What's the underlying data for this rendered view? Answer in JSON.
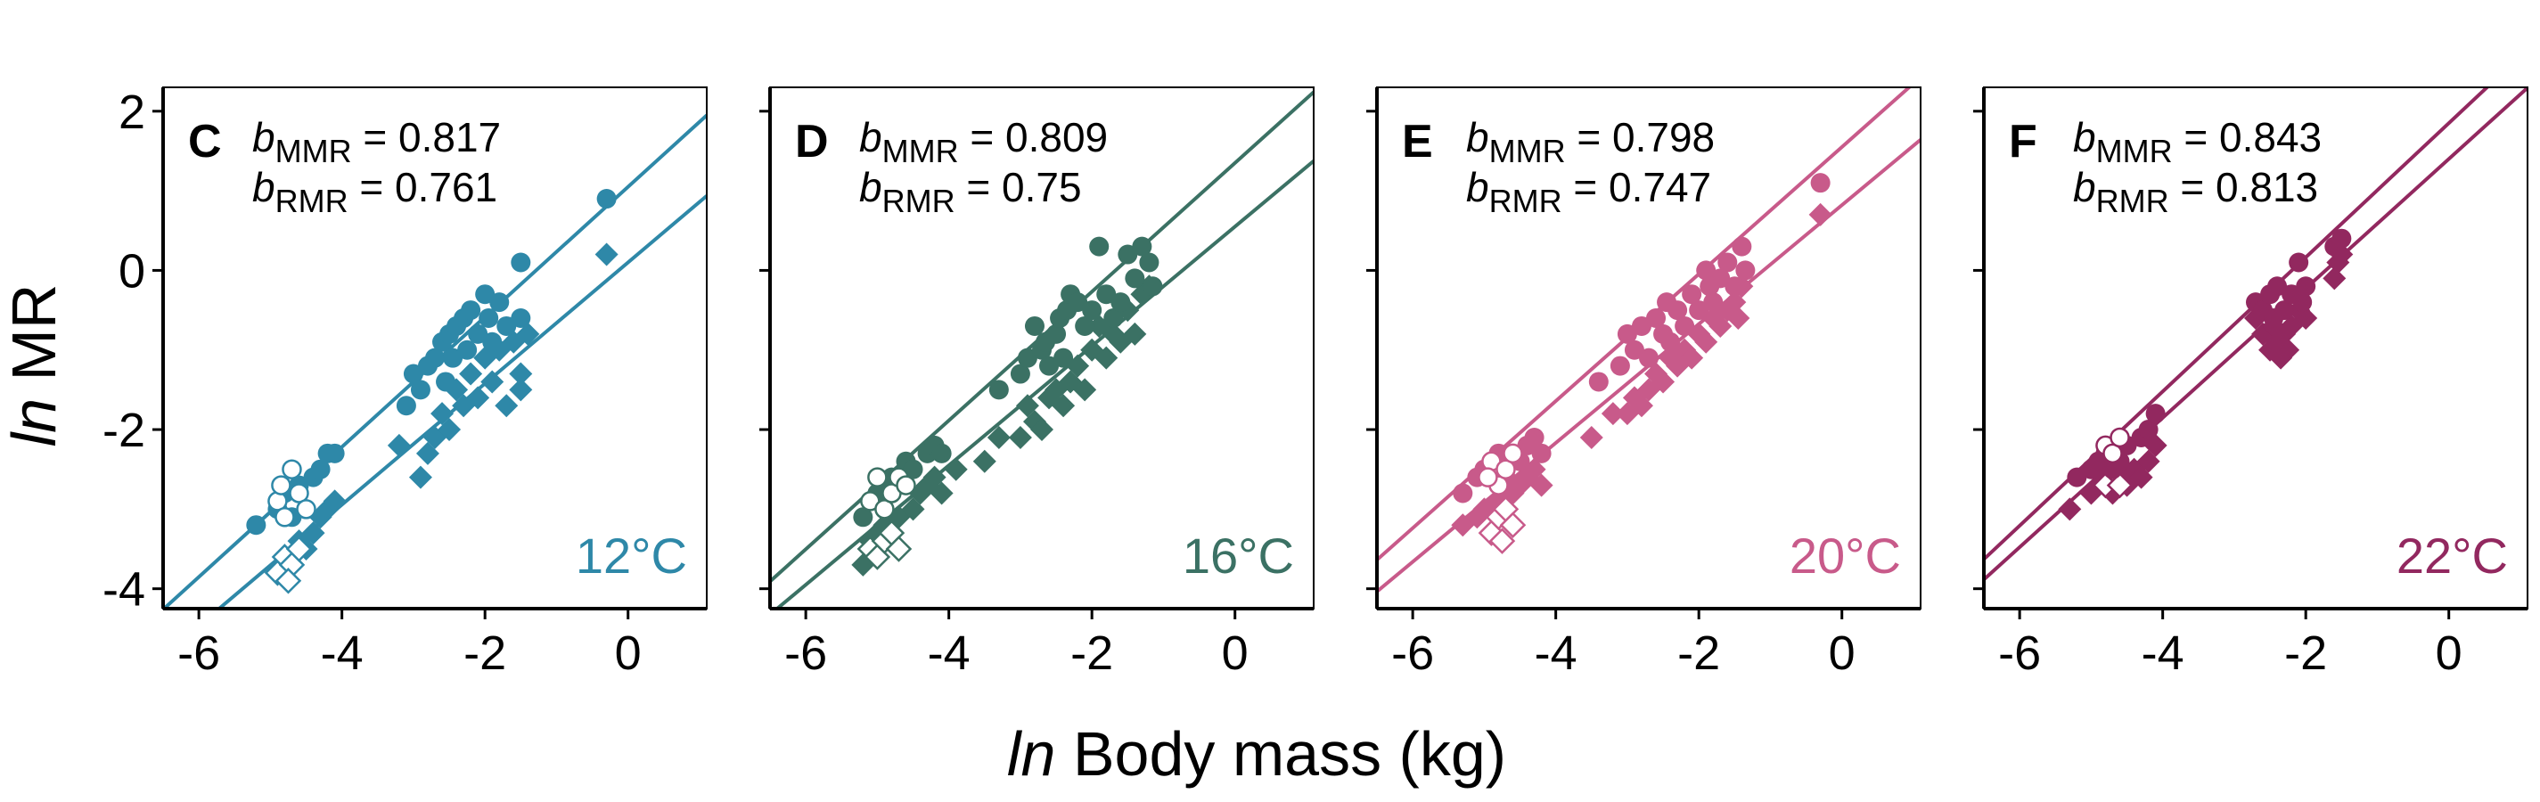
{
  "chart_data": {
    "type": "scatter",
    "xlabel_italic": "ln",
    "xlabel_rest": " Body mass (kg)",
    "ylabel_italic": "ln",
    "ylabel_rest": " MR",
    "xlim": [
      -6.5,
      1.1
    ],
    "ylim": [
      -4.25,
      2.3
    ],
    "x_ticks": [
      -6,
      -4,
      -2,
      0
    ],
    "x_tick_labels": [
      "-6",
      "-4",
      "-2",
      "0"
    ],
    "y_ticks": [
      2,
      0,
      -2,
      -4
    ],
    "y_tick_labels": [
      "2",
      "0",
      "-2",
      "-4"
    ],
    "grid": false,
    "b_symbol": "b",
    "sub_mmr": "MMR",
    "sub_rmr": "RMR",
    "eq_sign": " = ",
    "panels": [
      {
        "letter": "C",
        "temperature": "12°C",
        "color": "#2e88a8",
        "b_mmr": "0.817",
        "b_rmr": "0.761",
        "mmr_line": {
          "slope": 0.817,
          "intercept": 1.05
        },
        "rmr_line": {
          "slope": 0.761,
          "intercept": 0.1
        },
        "mmr_points": [
          [
            -5.2,
            -3.2
          ],
          [
            -4.9,
            -3.0
          ],
          [
            -4.8,
            -2.8
          ],
          [
            -4.7,
            -3.1
          ],
          [
            -4.6,
            -2.7
          ],
          [
            -4.4,
            -2.6
          ],
          [
            -4.3,
            -2.5
          ],
          [
            -4.2,
            -2.3
          ],
          [
            -4.1,
            -2.3
          ],
          [
            -3.1,
            -1.7
          ],
          [
            -3.0,
            -1.3
          ],
          [
            -2.9,
            -1.5
          ],
          [
            -2.8,
            -1.2
          ],
          [
            -2.7,
            -1.1
          ],
          [
            -2.6,
            -0.9
          ],
          [
            -2.55,
            -1.4
          ],
          [
            -2.5,
            -0.8
          ],
          [
            -2.45,
            -1.1
          ],
          [
            -2.4,
            -0.7
          ],
          [
            -2.3,
            -0.6
          ],
          [
            -2.25,
            -1.0
          ],
          [
            -2.2,
            -0.5
          ],
          [
            -2.1,
            -0.8
          ],
          [
            -2.0,
            -0.3
          ],
          [
            -1.95,
            -0.6
          ],
          [
            -1.9,
            -0.9
          ],
          [
            -1.8,
            -0.4
          ],
          [
            -1.7,
            -0.7
          ],
          [
            -1.5,
            0.1
          ],
          [
            -1.5,
            -0.6
          ],
          [
            -0.3,
            0.9
          ]
        ],
        "rmr_points": [
          [
            -4.7,
            -3.6
          ],
          [
            -4.6,
            -3.4
          ],
          [
            -4.5,
            -3.5
          ],
          [
            -4.4,
            -3.3
          ],
          [
            -4.3,
            -3.1
          ],
          [
            -4.2,
            -3.0
          ],
          [
            -4.1,
            -2.9
          ],
          [
            -3.2,
            -2.2
          ],
          [
            -2.9,
            -2.6
          ],
          [
            -2.8,
            -2.3
          ],
          [
            -2.7,
            -2.1
          ],
          [
            -2.6,
            -1.8
          ],
          [
            -2.5,
            -2.0
          ],
          [
            -2.4,
            -1.5
          ],
          [
            -2.3,
            -1.7
          ],
          [
            -2.2,
            -1.3
          ],
          [
            -2.1,
            -1.6
          ],
          [
            -2.0,
            -1.1
          ],
          [
            -1.9,
            -1.4
          ],
          [
            -1.8,
            -1.0
          ],
          [
            -1.7,
            -1.7
          ],
          [
            -1.6,
            -0.9
          ],
          [
            -1.5,
            -1.3
          ],
          [
            -1.4,
            -0.8
          ],
          [
            -1.5,
            -1.5
          ],
          [
            -0.3,
            0.2
          ]
        ],
        "mmr_open": [
          [
            -4.9,
            -2.9
          ],
          [
            -4.8,
            -3.1
          ],
          [
            -4.7,
            -2.5
          ],
          [
            -4.6,
            -2.8
          ],
          [
            -4.5,
            -3.0
          ],
          [
            -4.85,
            -2.7
          ]
        ],
        "rmr_open": [
          [
            -4.9,
            -3.8
          ],
          [
            -4.8,
            -3.6
          ],
          [
            -4.7,
            -3.7
          ],
          [
            -4.6,
            -3.5
          ],
          [
            -4.75,
            -3.9
          ]
        ]
      },
      {
        "letter": "D",
        "temperature": "16°C",
        "color": "#3b7164",
        "b_mmr": "0.809",
        "b_rmr": "0.75",
        "mmr_line": {
          "slope": 0.809,
          "intercept": 1.35
        },
        "rmr_line": {
          "slope": 0.75,
          "intercept": 0.55
        },
        "mmr_points": [
          [
            -5.2,
            -3.1
          ],
          [
            -5.0,
            -2.8
          ],
          [
            -4.9,
            -2.7
          ],
          [
            -4.8,
            -2.6
          ],
          [
            -4.6,
            -2.4
          ],
          [
            -4.5,
            -2.5
          ],
          [
            -4.3,
            -2.3
          ],
          [
            -4.2,
            -2.2
          ],
          [
            -4.1,
            -2.3
          ],
          [
            -3.3,
            -1.5
          ],
          [
            -3.0,
            -1.3
          ],
          [
            -2.9,
            -1.1
          ],
          [
            -2.8,
            -0.7
          ],
          [
            -2.7,
            -1.0
          ],
          [
            -2.65,
            -0.9
          ],
          [
            -2.6,
            -1.2
          ],
          [
            -2.5,
            -0.8
          ],
          [
            -2.45,
            -0.6
          ],
          [
            -2.4,
            -1.1
          ],
          [
            -2.35,
            -0.5
          ],
          [
            -2.3,
            -0.3
          ],
          [
            -2.2,
            -0.4
          ],
          [
            -2.1,
            -0.7
          ],
          [
            -2.0,
            -0.5
          ],
          [
            -1.9,
            0.3
          ],
          [
            -1.8,
            -0.3
          ],
          [
            -1.7,
            -0.6
          ],
          [
            -1.6,
            -0.4
          ],
          [
            -1.5,
            0.2
          ],
          [
            -1.4,
            -0.1
          ],
          [
            -1.3,
            0.3
          ],
          [
            -1.2,
            0.1
          ],
          [
            -1.15,
            -0.2
          ]
        ],
        "rmr_points": [
          [
            -5.2,
            -3.7
          ],
          [
            -5.1,
            -3.4
          ],
          [
            -5.0,
            -3.3
          ],
          [
            -4.9,
            -3.2
          ],
          [
            -4.7,
            -3.1
          ],
          [
            -4.5,
            -3.0
          ],
          [
            -4.4,
            -2.8
          ],
          [
            -4.3,
            -2.7
          ],
          [
            -4.2,
            -2.6
          ],
          [
            -4.1,
            -2.8
          ],
          [
            -3.9,
            -2.5
          ],
          [
            -3.5,
            -2.4
          ],
          [
            -3.3,
            -2.1
          ],
          [
            -3.0,
            -2.1
          ],
          [
            -2.9,
            -1.7
          ],
          [
            -2.8,
            -1.9
          ],
          [
            -2.7,
            -2.0
          ],
          [
            -2.6,
            -1.6
          ],
          [
            -2.5,
            -1.5
          ],
          [
            -2.4,
            -1.7
          ],
          [
            -2.3,
            -1.4
          ],
          [
            -2.2,
            -1.2
          ],
          [
            -2.1,
            -1.5
          ],
          [
            -2.0,
            -1.0
          ],
          [
            -1.9,
            -0.7
          ],
          [
            -1.8,
            -1.1
          ],
          [
            -1.7,
            -0.8
          ],
          [
            -1.6,
            -0.9
          ],
          [
            -1.5,
            -0.5
          ],
          [
            -1.4,
            -0.8
          ],
          [
            -1.3,
            -0.3
          ],
          [
            -1.2,
            -0.2
          ]
        ],
        "mmr_open": [
          [
            -5.1,
            -2.9
          ],
          [
            -5.0,
            -2.6
          ],
          [
            -4.9,
            -3.0
          ],
          [
            -4.8,
            -2.8
          ],
          [
            -4.7,
            -2.6
          ],
          [
            -4.6,
            -2.7
          ]
        ],
        "rmr_open": [
          [
            -5.1,
            -3.5
          ],
          [
            -5.0,
            -3.6
          ],
          [
            -4.9,
            -3.4
          ],
          [
            -4.8,
            -3.3
          ],
          [
            -4.7,
            -3.5
          ]
        ]
      },
      {
        "letter": "E",
        "temperature": "20°C",
        "color": "#c85a8a",
        "b_mmr": "0.798",
        "b_rmr": "0.747",
        "mmr_line": {
          "slope": 0.798,
          "intercept": 1.55
        },
        "rmr_line": {
          "slope": 0.747,
          "intercept": 0.82
        },
        "mmr_points": [
          [
            -5.3,
            -2.8
          ],
          [
            -5.1,
            -2.6
          ],
          [
            -5.0,
            -2.5
          ],
          [
            -4.8,
            -2.3
          ],
          [
            -4.7,
            -2.6
          ],
          [
            -4.5,
            -2.4
          ],
          [
            -4.4,
            -2.2
          ],
          [
            -4.3,
            -2.1
          ],
          [
            -4.2,
            -2.3
          ],
          [
            -3.4,
            -1.4
          ],
          [
            -3.1,
            -1.2
          ],
          [
            -3.0,
            -0.8
          ],
          [
            -2.9,
            -1.0
          ],
          [
            -2.8,
            -0.7
          ],
          [
            -2.7,
            -1.1
          ],
          [
            -2.6,
            -0.6
          ],
          [
            -2.5,
            -0.8
          ],
          [
            -2.45,
            -0.4
          ],
          [
            -2.4,
            -0.9
          ],
          [
            -2.3,
            -0.5
          ],
          [
            -2.2,
            -0.7
          ],
          [
            -2.1,
            -0.3
          ],
          [
            -2.0,
            -0.5
          ],
          [
            -1.9,
            0.0
          ],
          [
            -1.85,
            -0.2
          ],
          [
            -1.8,
            -0.4
          ],
          [
            -1.7,
            -0.1
          ],
          [
            -1.6,
            0.1
          ],
          [
            -1.5,
            -0.2
          ],
          [
            -1.4,
            0.3
          ],
          [
            -1.35,
            0.0
          ],
          [
            -0.3,
            1.1
          ]
        ],
        "rmr_points": [
          [
            -5.3,
            -3.2
          ],
          [
            -5.1,
            -3.1
          ],
          [
            -5.0,
            -3.0
          ],
          [
            -4.8,
            -2.9
          ],
          [
            -4.6,
            -2.8
          ],
          [
            -4.5,
            -2.7
          ],
          [
            -4.4,
            -2.6
          ],
          [
            -4.3,
            -2.5
          ],
          [
            -4.2,
            -2.7
          ],
          [
            -3.5,
            -2.1
          ],
          [
            -3.2,
            -1.8
          ],
          [
            -3.0,
            -1.8
          ],
          [
            -2.9,
            -1.6
          ],
          [
            -2.8,
            -1.7
          ],
          [
            -2.7,
            -1.5
          ],
          [
            -2.6,
            -1.3
          ],
          [
            -2.5,
            -1.4
          ],
          [
            -2.4,
            -1.1
          ],
          [
            -2.3,
            -1.2
          ],
          [
            -2.2,
            -1.0
          ],
          [
            -2.1,
            -1.1
          ],
          [
            -2.0,
            -0.8
          ],
          [
            -1.9,
            -0.9
          ],
          [
            -1.8,
            -0.6
          ],
          [
            -1.7,
            -0.7
          ],
          [
            -1.6,
            -0.5
          ],
          [
            -1.5,
            -0.4
          ],
          [
            -1.45,
            -0.6
          ],
          [
            -1.4,
            -0.2
          ],
          [
            -0.3,
            0.7
          ]
        ],
        "mmr_open": [
          [
            -4.9,
            -2.4
          ],
          [
            -4.8,
            -2.7
          ],
          [
            -4.7,
            -2.5
          ],
          [
            -4.6,
            -2.3
          ],
          [
            -4.95,
            -2.6
          ]
        ],
        "rmr_open": [
          [
            -4.9,
            -3.3
          ],
          [
            -4.8,
            -3.1
          ],
          [
            -4.7,
            -3.0
          ],
          [
            -4.6,
            -3.2
          ],
          [
            -4.75,
            -3.4
          ]
        ]
      },
      {
        "letter": "F",
        "temperature": "22°C",
        "color": "#92285f",
        "b_mmr": "0.843",
        "b_rmr": "0.813",
        "mmr_line": {
          "slope": 0.843,
          "intercept": 1.85
        },
        "rmr_line": {
          "slope": 0.813,
          "intercept": 1.4
        },
        "mmr_points": [
          [
            -5.2,
            -2.6
          ],
          [
            -5.0,
            -2.5
          ],
          [
            -4.9,
            -2.4
          ],
          [
            -4.8,
            -2.3
          ],
          [
            -4.7,
            -2.5
          ],
          [
            -4.6,
            -2.4
          ],
          [
            -4.5,
            -2.2
          ],
          [
            -4.3,
            -2.1
          ],
          [
            -4.2,
            -2.0
          ],
          [
            -4.1,
            -1.8
          ],
          [
            -2.7,
            -0.4
          ],
          [
            -2.6,
            -0.5
          ],
          [
            -2.5,
            -0.3
          ],
          [
            -2.45,
            -0.6
          ],
          [
            -2.4,
            -0.2
          ],
          [
            -2.3,
            -0.5
          ],
          [
            -2.2,
            -0.3
          ],
          [
            -2.1,
            0.1
          ],
          [
            -2.05,
            -0.4
          ],
          [
            -2.0,
            -0.2
          ],
          [
            -1.6,
            0.3
          ],
          [
            -1.5,
            0.4
          ]
        ],
        "rmr_points": [
          [
            -5.3,
            -3.0
          ],
          [
            -5.0,
            -2.8
          ],
          [
            -4.9,
            -2.7
          ],
          [
            -4.8,
            -2.6
          ],
          [
            -4.7,
            -2.8
          ],
          [
            -4.6,
            -2.6
          ],
          [
            -4.5,
            -2.7
          ],
          [
            -4.4,
            -2.5
          ],
          [
            -4.3,
            -2.6
          ],
          [
            -4.2,
            -2.4
          ],
          [
            -4.1,
            -2.2
          ],
          [
            -2.7,
            -0.6
          ],
          [
            -2.6,
            -0.8
          ],
          [
            -2.5,
            -1.0
          ],
          [
            -2.45,
            -0.7
          ],
          [
            -2.4,
            -0.9
          ],
          [
            -2.35,
            -1.1
          ],
          [
            -2.3,
            -0.8
          ],
          [
            -2.25,
            -1.0
          ],
          [
            -2.2,
            -0.7
          ],
          [
            -2.1,
            -0.5
          ],
          [
            -2.0,
            -0.6
          ],
          [
            -1.6,
            -0.1
          ],
          [
            -1.55,
            0.1
          ],
          [
            -1.5,
            0.2
          ]
        ],
        "mmr_open": [
          [
            -4.8,
            -2.2
          ],
          [
            -4.7,
            -2.3
          ],
          [
            -4.6,
            -2.1
          ]
        ],
        "rmr_open": [
          [
            -4.8,
            -2.7
          ],
          [
            -4.7,
            -2.5
          ],
          [
            -4.6,
            -2.7
          ]
        ]
      }
    ]
  }
}
